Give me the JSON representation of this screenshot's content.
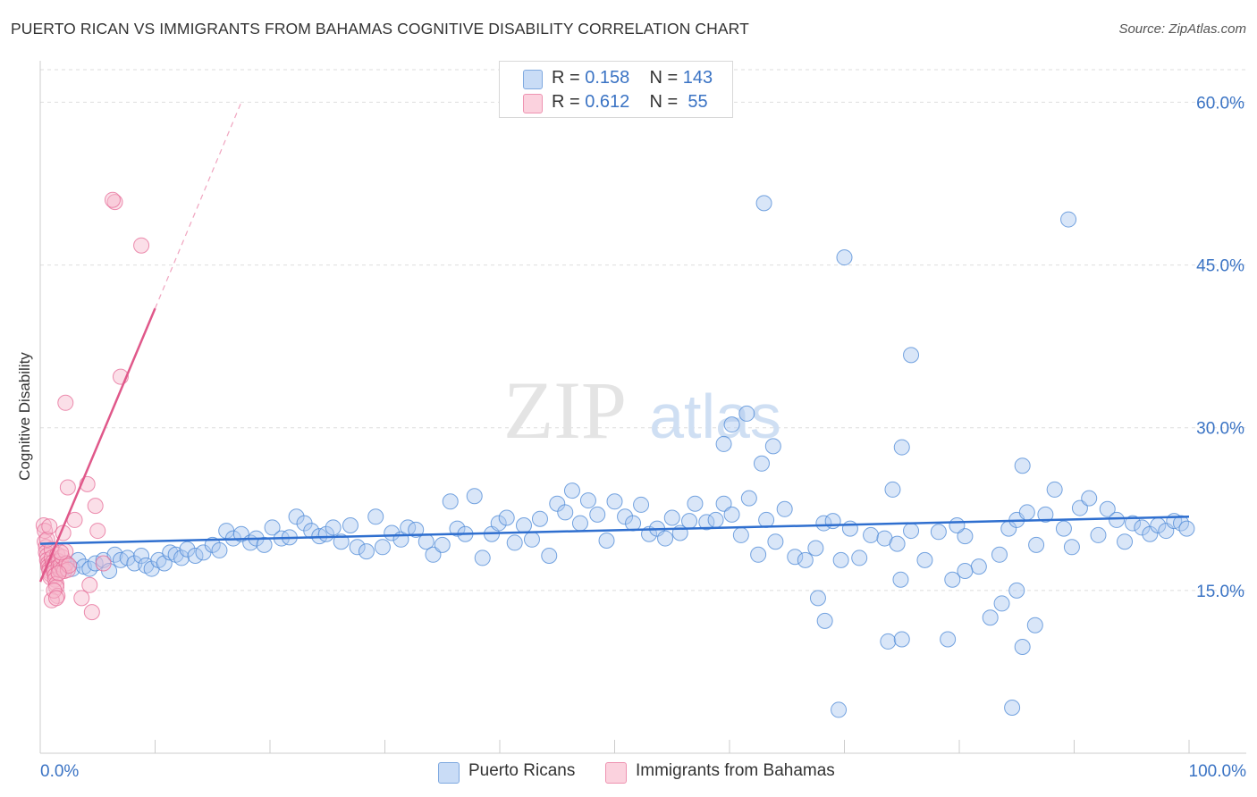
{
  "header": {
    "title": "PUERTO RICAN VS IMMIGRANTS FROM BAHAMAS COGNITIVE DISABILITY CORRELATION CHART",
    "source": "Source: ZipAtlas.com"
  },
  "watermark": {
    "zip": "ZIP",
    "atlas": "atlas"
  },
  "legend": {
    "rows": [
      {
        "r_label": "R = ",
        "r_value": "0.158",
        "n_label": "N = ",
        "n_value": "143",
        "color": "#aac8f0"
      },
      {
        "r_label": "R = ",
        "r_value": "0.612",
        "n_label": "N = ",
        "n_value": " 55",
        "color": "#f7b8cb"
      }
    ]
  },
  "bottom_legend": {
    "items": [
      {
        "label": "Puerto Ricans",
        "color": "#aac8f0"
      },
      {
        "label": "Immigrants from Bahamas",
        "color": "#f7b8cb"
      }
    ]
  },
  "chart_data": {
    "type": "scatter",
    "title": "PUERTO RICAN VS IMMIGRANTS FROM BAHAMAS COGNITIVE DISABILITY CORRELATION CHART",
    "xlabel": "",
    "ylabel": "Cognitive Disability",
    "xlim": [
      0,
      100
    ],
    "ylim": [
      0,
      63
    ],
    "x_tick_labels": [
      "0.0%",
      "100.0%"
    ],
    "y_ticks": [
      15,
      30,
      45,
      60
    ],
    "y_tick_labels": [
      "15.0%",
      "30.0%",
      "45.0%",
      "60.0%"
    ],
    "grid": "horizontal dashed",
    "series": [
      {
        "name": "Puerto Ricans",
        "color": "#4a87d6",
        "fill": "#aac8f0",
        "r": 0.158,
        "n": 143,
        "trend": {
          "x0": 0,
          "y0": 19.3,
          "x1": 100,
          "y1": 21.8
        },
        "points": [
          [
            1.2,
            17.3
          ],
          [
            1.8,
            17.0
          ],
          [
            2.2,
            17.5
          ],
          [
            2.8,
            17.0
          ],
          [
            3.3,
            17.8
          ],
          [
            3.8,
            17.2
          ],
          [
            4.3,
            17.0
          ],
          [
            4.8,
            17.5
          ],
          [
            5.5,
            17.8
          ],
          [
            6.0,
            16.8
          ],
          [
            6.5,
            18.3
          ],
          [
            7.0,
            17.8
          ],
          [
            7.6,
            18.0
          ],
          [
            8.2,
            17.5
          ],
          [
            8.8,
            18.2
          ],
          [
            9.2,
            17.3
          ],
          [
            9.7,
            17.0
          ],
          [
            10.3,
            17.8
          ],
          [
            10.8,
            17.5
          ],
          [
            11.3,
            18.5
          ],
          [
            11.8,
            18.3
          ],
          [
            12.3,
            18.0
          ],
          [
            12.8,
            18.8
          ],
          [
            13.5,
            18.2
          ],
          [
            14.2,
            18.5
          ],
          [
            15.0,
            19.2
          ],
          [
            15.6,
            18.7
          ],
          [
            16.2,
            20.5
          ],
          [
            16.8,
            19.8
          ],
          [
            17.5,
            20.2
          ],
          [
            18.3,
            19.4
          ],
          [
            18.8,
            19.8
          ],
          [
            19.5,
            19.2
          ],
          [
            20.2,
            20.8
          ],
          [
            21.0,
            19.8
          ],
          [
            21.7,
            19.9
          ],
          [
            22.3,
            21.8
          ],
          [
            23.0,
            21.2
          ],
          [
            23.6,
            20.5
          ],
          [
            24.3,
            20.0
          ],
          [
            24.9,
            20.2
          ],
          [
            25.5,
            20.8
          ],
          [
            26.2,
            19.5
          ],
          [
            27.0,
            21.0
          ],
          [
            27.6,
            19.0
          ],
          [
            28.4,
            18.6
          ],
          [
            29.2,
            21.8
          ],
          [
            29.8,
            19.0
          ],
          [
            30.6,
            20.3
          ],
          [
            31.4,
            19.7
          ],
          [
            32.0,
            20.8
          ],
          [
            32.7,
            20.6
          ],
          [
            33.6,
            19.5
          ],
          [
            34.2,
            18.3
          ],
          [
            35.0,
            19.2
          ],
          [
            35.7,
            23.2
          ],
          [
            36.3,
            20.7
          ],
          [
            37.0,
            20.2
          ],
          [
            37.8,
            23.7
          ],
          [
            38.5,
            18.0
          ],
          [
            39.3,
            20.2
          ],
          [
            39.9,
            21.2
          ],
          [
            40.6,
            21.7
          ],
          [
            41.3,
            19.4
          ],
          [
            42.1,
            21.0
          ],
          [
            42.8,
            19.7
          ],
          [
            43.5,
            21.6
          ],
          [
            44.3,
            18.2
          ],
          [
            45.0,
            23.0
          ],
          [
            45.7,
            22.2
          ],
          [
            46.3,
            24.2
          ],
          [
            47.0,
            21.2
          ],
          [
            47.7,
            23.3
          ],
          [
            48.5,
            22.0
          ],
          [
            49.3,
            19.6
          ],
          [
            50.0,
            23.2
          ],
          [
            50.9,
            21.8
          ],
          [
            51.6,
            21.2
          ],
          [
            52.3,
            22.9
          ],
          [
            53.0,
            20.2
          ],
          [
            53.7,
            20.7
          ],
          [
            54.4,
            19.8
          ],
          [
            55.0,
            21.7
          ],
          [
            55.7,
            20.3
          ],
          [
            56.5,
            21.4
          ],
          [
            57.0,
            23.0
          ],
          [
            58.0,
            21.3
          ],
          [
            58.8,
            21.5
          ],
          [
            59.5,
            23.0
          ],
          [
            60.2,
            22.0
          ],
          [
            61.0,
            20.1
          ],
          [
            61.7,
            23.5
          ],
          [
            62.5,
            18.3
          ],
          [
            63.2,
            21.5
          ],
          [
            64.0,
            19.5
          ],
          [
            64.8,
            22.5
          ],
          [
            65.7,
            18.1
          ],
          [
            66.6,
            17.8
          ],
          [
            67.5,
            18.9
          ],
          [
            68.2,
            21.2
          ],
          [
            69.0,
            21.4
          ],
          [
            69.7,
            17.8
          ],
          [
            70.5,
            20.7
          ],
          [
            71.3,
            18.0
          ],
          [
            72.3,
            20.1
          ],
          [
            73.5,
            19.8
          ],
          [
            74.6,
            19.3
          ],
          [
            75.8,
            20.5
          ],
          [
            77.0,
            17.8
          ],
          [
            78.2,
            20.4
          ],
          [
            79.4,
            16.0
          ],
          [
            80.5,
            20.0
          ],
          [
            81.7,
            17.2
          ],
          [
            82.7,
            12.5
          ],
          [
            83.5,
            18.3
          ],
          [
            84.3,
            20.7
          ],
          [
            85.0,
            21.5
          ],
          [
            85.9,
            22.2
          ],
          [
            86.7,
            19.2
          ],
          [
            87.5,
            22.0
          ],
          [
            88.3,
            24.3
          ],
          [
            89.1,
            20.7
          ],
          [
            89.8,
            19.0
          ],
          [
            90.5,
            22.6
          ],
          [
            91.3,
            23.5
          ],
          [
            92.1,
            20.1
          ],
          [
            92.9,
            22.5
          ],
          [
            93.7,
            21.5
          ],
          [
            94.4,
            19.5
          ],
          [
            95.1,
            21.2
          ],
          [
            95.9,
            20.8
          ],
          [
            96.6,
            20.2
          ],
          [
            97.3,
            21.0
          ],
          [
            98.0,
            20.5
          ],
          [
            98.7,
            21.4
          ],
          [
            99.3,
            21.2
          ],
          [
            99.8,
            20.7
          ],
          [
            70.0,
            45.7
          ],
          [
            74.2,
            24.3
          ],
          [
            74.9,
            16.0
          ],
          [
            79.0,
            10.5
          ],
          [
            79.8,
            21.0
          ],
          [
            80.5,
            16.8
          ],
          [
            85.0,
            15.0
          ],
          [
            86.6,
            11.8
          ]
        ]
      },
      {
        "name": "Immigrants from Bahamas",
        "color": "#e66a96",
        "fill": "#f7b8cb",
        "r": 0.612,
        "n": 55,
        "trend": {
          "x0": 0,
          "y0": 15.8,
          "x1": 10,
          "y1": 41.0
        },
        "trend_dashed": {
          "x0": 10,
          "y0": 41.0,
          "x1": 17.5,
          "y1": 60.0
        },
        "points": [
          [
            0.3,
            21.0
          ],
          [
            0.4,
            19.5
          ],
          [
            0.5,
            19.0
          ],
          [
            0.5,
            18.5
          ],
          [
            0.6,
            18.2
          ],
          [
            0.6,
            17.8
          ],
          [
            0.7,
            17.5
          ],
          [
            0.7,
            17.2
          ],
          [
            0.8,
            17.0
          ],
          [
            0.8,
            16.8
          ],
          [
            0.9,
            16.5
          ],
          [
            0.9,
            16.2
          ],
          [
            1.0,
            18.8
          ],
          [
            1.0,
            18.0
          ],
          [
            1.1,
            17.6
          ],
          [
            1.1,
            17.3
          ],
          [
            1.2,
            17.0
          ],
          [
            1.2,
            16.7
          ],
          [
            1.3,
            16.4
          ],
          [
            1.3,
            16.0
          ],
          [
            1.4,
            15.6
          ],
          [
            1.4,
            15.3
          ],
          [
            1.5,
            14.5
          ],
          [
            1.5,
            18.3
          ],
          [
            1.6,
            17.7
          ],
          [
            1.6,
            17.2
          ],
          [
            1.7,
            16.9
          ],
          [
            1.8,
            17.4
          ],
          [
            1.9,
            18.1
          ],
          [
            2.0,
            17.0
          ],
          [
            2.1,
            16.8
          ],
          [
            2.2,
            18.6
          ],
          [
            2.3,
            17.5
          ],
          [
            2.4,
            16.9
          ],
          [
            2.5,
            17.3
          ],
          [
            0.4,
            20.5
          ],
          [
            0.6,
            19.7
          ],
          [
            0.8,
            20.9
          ],
          [
            1.0,
            14.1
          ],
          [
            1.2,
            15.0
          ],
          [
            1.4,
            14.3
          ],
          [
            1.6,
            16.6
          ],
          [
            1.8,
            18.5
          ],
          [
            2.0,
            20.3
          ],
          [
            2.2,
            32.3
          ],
          [
            2.4,
            24.5
          ],
          [
            3.0,
            21.5
          ],
          [
            3.6,
            14.3
          ],
          [
            4.1,
            24.8
          ],
          [
            4.3,
            15.5
          ],
          [
            4.5,
            13.0
          ],
          [
            4.8,
            22.8
          ],
          [
            5.0,
            20.5
          ],
          [
            5.5,
            17.5
          ],
          [
            6.5,
            50.8
          ]
        ]
      }
    ],
    "extra_points_note": "Additional notable points: Puerto Ricans (60.2,30.3),(61.5,31.3),(59.5,28.5),(63.8,28.3),(75.0,28.2),(62.8,26.7),(85.5,26.5),(63.0,50.7),(89.5,49.2),(75.8,36.7),(67.7,14.3),(68.3,12.2),(69.5,4.0),(73.8,10.3),(75.0,10.5),(84.6,4.2),(85.5,9.8),(83.7,13.8); Bahamas (6.3,51.0),(8.8,46.8),(7.0,34.7)"
  }
}
